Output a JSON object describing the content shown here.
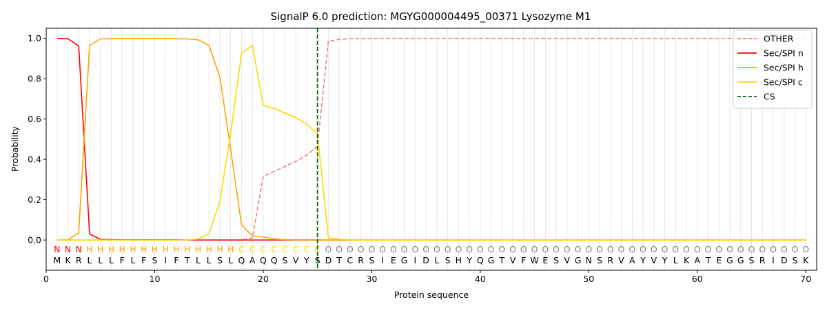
{
  "chart_data": {
    "type": "line",
    "title": "SignalP 6.0 prediction: MGYG000004495_00371 Lysozyme M1",
    "xlabel": "Protein sequence",
    "ylabel": "Probability",
    "xlim": [
      0,
      71
    ],
    "ylim": [
      -0.15,
      1.05
    ],
    "xticks": [
      0,
      10,
      20,
      30,
      40,
      50,
      60,
      70
    ],
    "yticks": [
      0.0,
      0.2,
      0.4,
      0.6,
      0.8,
      1.0
    ],
    "xtick_labels": [
      "0",
      "10",
      "20",
      "30",
      "40",
      "50",
      "60",
      "70"
    ],
    "ytick_labels": [
      "0.0",
      "0.2",
      "0.4",
      "0.6",
      "0.8",
      "1.0"
    ],
    "grid": "vertical lines at each residue",
    "legend_position": "top-right",
    "sequence": [
      "M",
      "K",
      "R",
      "L",
      "L",
      "L",
      "F",
      "L",
      "F",
      "S",
      "I",
      "F",
      "T",
      "L",
      "L",
      "S",
      "L",
      "Q",
      "A",
      "Q",
      "Q",
      "S",
      "V",
      "Y",
      "S",
      "D",
      "T",
      "C",
      "R",
      "S",
      "I",
      "E",
      "G",
      "I",
      "D",
      "L",
      "S",
      "H",
      "Y",
      "Q",
      "G",
      "T",
      "V",
      "F",
      "W",
      "E",
      "S",
      "V",
      "G",
      "N",
      "S",
      "R",
      "V",
      "A",
      "Y",
      "V",
      "Y",
      "L",
      "K",
      "A",
      "T",
      "E",
      "G",
      "G",
      "S",
      "R",
      "I",
      "D",
      "S",
      "K"
    ],
    "labels": [
      "N",
      "N",
      "N",
      "H",
      "H",
      "H",
      "H",
      "H",
      "H",
      "H",
      "H",
      "H",
      "H",
      "H",
      "H",
      "H",
      "H",
      "C",
      "C",
      "C",
      "C",
      "C",
      "C",
      "C",
      "C",
      "O",
      "O",
      "O",
      "O",
      "O",
      "O",
      "O",
      "O",
      "O",
      "O",
      "O",
      "O",
      "O",
      "O",
      "O",
      "O",
      "O",
      "O",
      "O",
      "O",
      "O",
      "O",
      "O",
      "O",
      "O",
      "O",
      "O",
      "O",
      "O",
      "O",
      "O",
      "O",
      "O",
      "O",
      "O",
      "O",
      "O",
      "O",
      "O",
      "O",
      "O",
      "O",
      "O",
      "O",
      "O"
    ],
    "cleavage_site": 25,
    "series": [
      {
        "name": "OTHER",
        "color": "#f08080",
        "dash": true,
        "values": [
          0,
          0,
          0,
          0,
          0,
          0,
          0,
          0,
          0,
          0,
          0,
          0,
          0,
          0,
          0,
          0,
          0,
          0,
          0.01,
          0.315,
          0.34,
          0.365,
          0.39,
          0.42,
          0.465,
          0.985,
          0.995,
          0.998,
          0.999,
          1,
          1,
          1,
          1,
          1,
          1,
          1,
          1,
          1,
          1,
          1,
          1,
          1,
          1,
          1,
          1,
          1,
          1,
          1,
          1,
          1,
          1,
          1,
          1,
          1,
          1,
          1,
          1,
          1,
          1,
          1,
          1,
          1,
          1,
          1,
          1,
          1,
          1,
          1,
          1,
          1
        ]
      },
      {
        "name": "Sec/SPI n",
        "color": "#ff0000",
        "dash": false,
        "values": [
          1.0,
          0.998,
          0.962,
          0.03,
          0.003,
          0.002,
          0.001,
          0.001,
          0.001,
          0.001,
          0.001,
          0.001,
          0.001,
          0,
          0,
          0,
          0,
          0,
          0,
          0,
          0,
          0,
          0,
          0,
          0,
          0,
          0,
          0,
          0,
          0,
          0,
          0,
          0,
          0,
          0,
          0,
          0,
          0,
          0,
          0,
          0,
          0,
          0,
          0,
          0,
          0,
          0,
          0,
          0,
          0,
          0,
          0,
          0,
          0,
          0,
          0,
          0,
          0,
          0,
          0,
          0,
          0,
          0,
          0,
          0,
          0,
          0,
          0,
          0,
          0
        ]
      },
      {
        "name": "Sec/SPI h",
        "color": "#ffa500",
        "dash": false,
        "values": [
          0,
          0.001,
          0.035,
          0.965,
          0.997,
          0.998,
          0.999,
          0.999,
          0.999,
          0.999,
          0.999,
          0.998,
          0.997,
          0.993,
          0.965,
          0.81,
          0.45,
          0.075,
          0.02,
          0.015,
          0.005,
          0.002,
          0.001,
          0.001,
          0.001,
          0,
          0,
          0,
          0,
          0,
          0,
          0,
          0,
          0,
          0,
          0,
          0,
          0,
          0,
          0,
          0,
          0,
          0,
          0,
          0,
          0,
          0,
          0,
          0,
          0,
          0,
          0,
          0,
          0,
          0,
          0,
          0,
          0,
          0,
          0,
          0,
          0,
          0,
          0,
          0,
          0,
          0,
          0,
          0,
          0
        ]
      },
      {
        "name": "Sec/SPI c",
        "color": "#ffd700",
        "dash": false,
        "values": [
          0,
          0,
          0,
          0,
          0,
          0,
          0,
          0,
          0,
          0,
          0,
          0,
          0.001,
          0.005,
          0.03,
          0.19,
          0.53,
          0.925,
          0.965,
          0.668,
          0.652,
          0.63,
          0.607,
          0.575,
          0.525,
          0.012,
          0.004,
          0.001,
          0,
          0,
          0,
          0,
          0,
          0,
          0,
          0,
          0,
          0,
          0,
          0,
          0,
          0,
          0,
          0,
          0,
          0,
          0,
          0,
          0,
          0,
          0,
          0,
          0,
          0,
          0,
          0,
          0,
          0,
          0,
          0,
          0,
          0,
          0,
          0,
          0,
          0,
          0,
          0,
          0,
          0
        ]
      }
    ],
    "cs_legend": "CS",
    "cs_color": "#006400",
    "label_colors": {
      "N": "#ff0000",
      "H": "#ffa500",
      "C": "#ffd700",
      "O": "#808080"
    }
  }
}
